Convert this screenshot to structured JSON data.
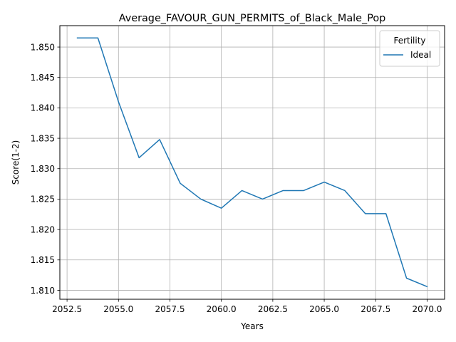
{
  "chart_data": {
    "type": "line",
    "title": "Average_FAVOUR_GUN_PERMITS_of_Black_Male_Pop",
    "xlabel": "Years",
    "ylabel": "Score(1-2)",
    "grid": true,
    "legend": {
      "title": "Fertility",
      "placement": "top-right"
    },
    "xlim": [
      2052.15,
      2070.85
    ],
    "ylim": [
      1.80853,
      1.85352
    ],
    "xticks": [
      2052.5,
      2055,
      2057.5,
      2060,
      2062.5,
      2065,
      2067.5,
      2070
    ],
    "xtick_labels": [
      "2052.5",
      "2055.0",
      "2057.5",
      "2060.0",
      "2062.5",
      "2065.0",
      "2067.5",
      "2070.0"
    ],
    "yticks": [
      1.81,
      1.815,
      1.82,
      1.825,
      1.83,
      1.835,
      1.84,
      1.845,
      1.85
    ],
    "ytick_labels": [
      "1.810",
      "1.815",
      "1.820",
      "1.825",
      "1.830",
      "1.835",
      "1.840",
      "1.845",
      "1.850"
    ],
    "series": [
      {
        "name": "Ideal",
        "color": "#1f77b4",
        "x": [
          2053,
          2054,
          2055,
          2056,
          2057,
          2058,
          2059,
          2060,
          2061,
          2062,
          2063,
          2064,
          2065,
          2066,
          2067,
          2068,
          2069,
          2070
        ],
        "y": [
          1.8515,
          1.8515,
          1.841,
          1.8318,
          1.8348,
          1.8276,
          1.825,
          1.8235,
          1.8264,
          1.825,
          1.8264,
          1.8264,
          1.8278,
          1.8264,
          1.8226,
          1.8226,
          1.812,
          1.8106
        ]
      }
    ]
  }
}
